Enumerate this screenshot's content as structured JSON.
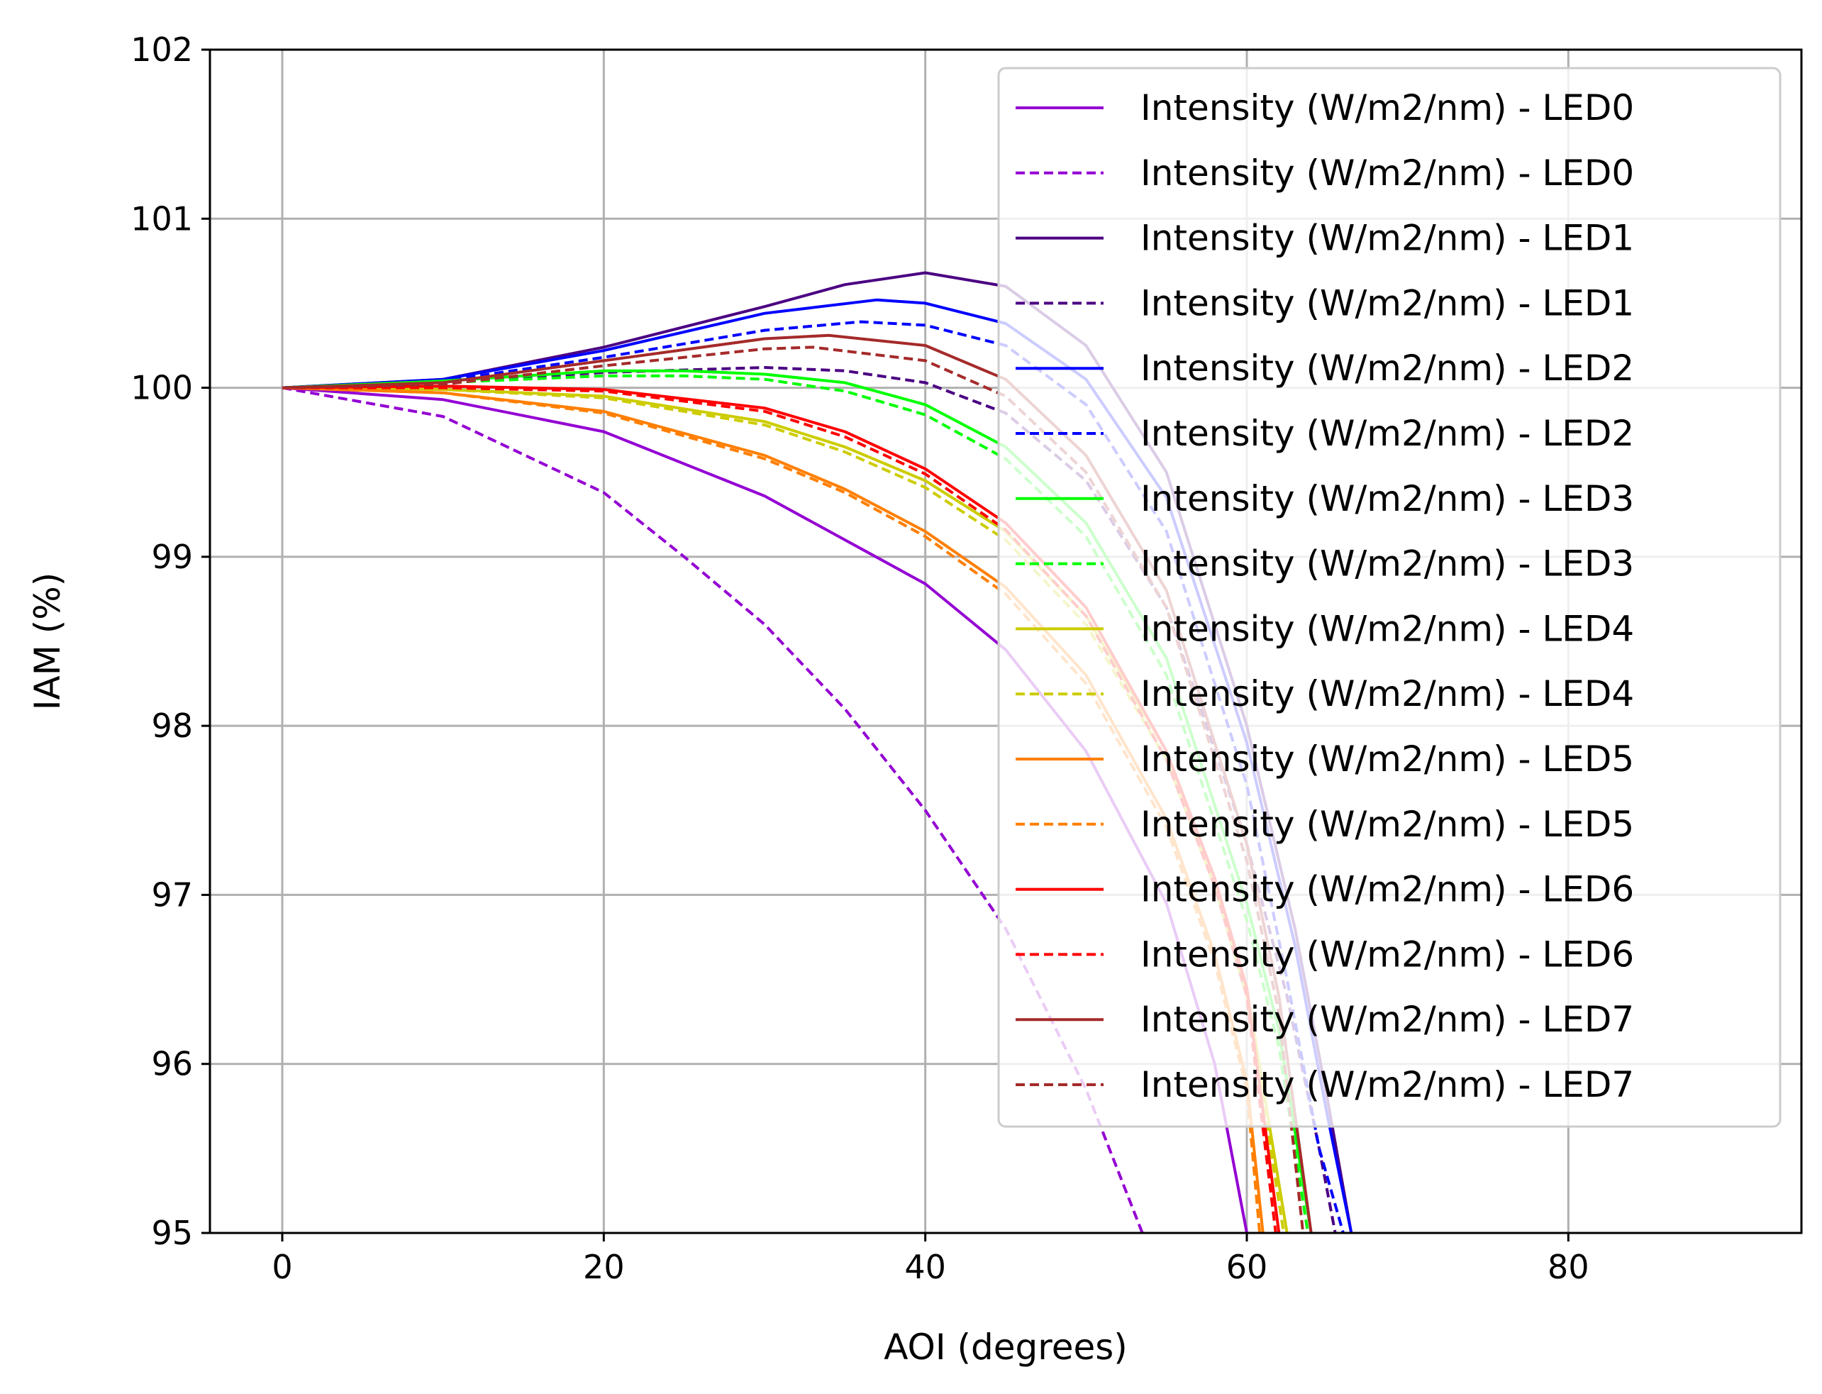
{
  "chart_data": {
    "type": "line",
    "title": "",
    "xlabel": "AOI (degrees)",
    "ylabel": "IAM (%)",
    "xlim": [
      -4.5,
      94.5
    ],
    "ylim": [
      95,
      102
    ],
    "xticks": [
      "0",
      "20",
      "40",
      "60",
      "80"
    ],
    "yticks": [
      "95",
      "96",
      "97",
      "98",
      "99",
      "100",
      "101",
      "102"
    ],
    "grid": true,
    "legend_position": "top-right",
    "series": [
      {
        "name": "Intensity (W/m2/nm) - LED0",
        "color": "#9400d3",
        "style": "solid",
        "x": [
          0,
          10,
          20,
          30,
          40,
          45,
          50,
          55,
          58,
          60
        ],
        "y": [
          100,
          99.93,
          99.74,
          99.36,
          98.84,
          98.45,
          97.85,
          96.95,
          96.0,
          95.0
        ]
      },
      {
        "name": "Intensity (W/m2/nm) - LED0",
        "color": "#9400d3",
        "style": "dashed",
        "x": [
          0,
          10,
          20,
          25,
          30,
          35,
          40,
          45,
          50,
          53.5
        ],
        "y": [
          100,
          99.83,
          99.38,
          99.0,
          98.6,
          98.1,
          97.5,
          96.8,
          95.85,
          95.0
        ]
      },
      {
        "name": "Intensity (W/m2/nm) - LED1",
        "color": "#4b0082",
        "style": "solid",
        "x": [
          0,
          10,
          20,
          30,
          35,
          40,
          45,
          50,
          55,
          60,
          63,
          65,
          66.5
        ],
        "y": [
          100,
          100.05,
          100.24,
          100.48,
          100.61,
          100.68,
          100.6,
          100.25,
          99.5,
          98.0,
          96.8,
          95.8,
          95.0
        ]
      },
      {
        "name": "Intensity (W/m2/nm) - LED1",
        "color": "#4b0082",
        "style": "dashed",
        "x": [
          0,
          10,
          20,
          30,
          35,
          40,
          45,
          50,
          55,
          60,
          62.5,
          64.5,
          65.5
        ],
        "y": [
          100,
          100.03,
          100.09,
          100.12,
          100.1,
          100.03,
          99.85,
          99.45,
          98.7,
          97.3,
          96.4,
          95.5,
          95.0
        ]
      },
      {
        "name": "Intensity (W/m2/nm) - LED2",
        "color": "#0000ff",
        "style": "solid",
        "x": [
          0,
          10,
          20,
          30,
          37,
          40,
          45,
          50,
          55,
          60,
          63,
          65,
          66.5
        ],
        "y": [
          100,
          100.05,
          100.22,
          100.44,
          100.52,
          100.5,
          100.38,
          100.05,
          99.35,
          97.9,
          96.7,
          95.7,
          95.0
        ]
      },
      {
        "name": "Intensity (W/m2/nm) - LED2",
        "color": "#0000ff",
        "style": "dashed",
        "x": [
          0,
          10,
          20,
          30,
          36,
          40,
          45,
          50,
          55,
          60,
          62.5,
          64.5,
          66
        ],
        "y": [
          100,
          100.04,
          100.18,
          100.34,
          100.39,
          100.37,
          100.25,
          99.9,
          99.15,
          97.65,
          96.5,
          95.5,
          95.0
        ]
      },
      {
        "name": "Intensity (W/m2/nm) - LED3",
        "color": "#00ff00",
        "style": "solid",
        "x": [
          0,
          10,
          20,
          25,
          30,
          35,
          40,
          45,
          50,
          55,
          60,
          62,
          64
        ],
        "y": [
          100,
          100.04,
          100.1,
          100.1,
          100.08,
          100.03,
          99.9,
          99.65,
          99.2,
          98.4,
          96.95,
          96.2,
          95.0
        ]
      },
      {
        "name": "Intensity (W/m2/nm) - LED3",
        "color": "#00ff00",
        "style": "dashed",
        "x": [
          0,
          10,
          20,
          25,
          30,
          35,
          40,
          45,
          50,
          55,
          60,
          62,
          63.8
        ],
        "y": [
          100,
          100.03,
          100.07,
          100.07,
          100.05,
          99.98,
          99.84,
          99.58,
          99.12,
          98.3,
          96.85,
          96.1,
          95.0
        ]
      },
      {
        "name": "Intensity (W/m2/nm) - LED4",
        "color": "#cccc00",
        "style": "solid",
        "x": [
          0,
          10,
          20,
          30,
          35,
          40,
          45,
          50,
          55,
          58,
          60,
          62.5
        ],
        "y": [
          100,
          99.99,
          99.95,
          99.8,
          99.65,
          99.45,
          99.15,
          98.65,
          97.85,
          97.1,
          96.45,
          95.0
        ]
      },
      {
        "name": "Intensity (W/m2/nm) - LED4",
        "color": "#cccc00",
        "style": "dashed",
        "x": [
          0,
          10,
          20,
          30,
          35,
          40,
          45,
          50,
          55,
          58,
          60,
          62.3
        ],
        "y": [
          100,
          99.99,
          99.94,
          99.78,
          99.62,
          99.41,
          99.1,
          98.6,
          97.8,
          97.05,
          96.4,
          95.0
        ]
      },
      {
        "name": "Intensity (W/m2/nm) - LED5",
        "color": "#ff7f00",
        "style": "solid",
        "x": [
          0,
          10,
          20,
          30,
          35,
          40,
          45,
          50,
          55,
          58,
          60,
          61
        ],
        "y": [
          100,
          99.97,
          99.86,
          99.6,
          99.4,
          99.15,
          98.82,
          98.3,
          97.45,
          96.65,
          95.9,
          95.0
        ]
      },
      {
        "name": "Intensity (W/m2/nm) - LED5",
        "color": "#ff7f00",
        "style": "dashed",
        "x": [
          0,
          10,
          20,
          30,
          35,
          40,
          45,
          50,
          55,
          58,
          60,
          60.8
        ],
        "y": [
          100,
          99.97,
          99.85,
          99.58,
          99.38,
          99.12,
          98.78,
          98.25,
          97.4,
          96.6,
          95.85,
          95.0
        ]
      },
      {
        "name": "Intensity (W/m2/nm) - LED6",
        "color": "#ff0000",
        "style": "solid",
        "x": [
          0,
          10,
          20,
          30,
          35,
          40,
          45,
          50,
          55,
          58,
          60,
          62
        ],
        "y": [
          100,
          100.01,
          99.99,
          99.88,
          99.74,
          99.52,
          99.2,
          98.7,
          97.85,
          97.1,
          96.45,
          95.0
        ]
      },
      {
        "name": "Intensity (W/m2/nm) - LED6",
        "color": "#ff0000",
        "style": "dashed",
        "x": [
          0,
          10,
          20,
          30,
          35,
          40,
          45,
          50,
          55,
          58,
          60,
          61.8
        ],
        "y": [
          100,
          100.0,
          99.98,
          99.86,
          99.71,
          99.49,
          99.16,
          98.65,
          97.8,
          97.05,
          96.4,
          95.0
        ]
      },
      {
        "name": "Intensity (W/m2/nm) - LED7",
        "color": "#a52a2a",
        "style": "solid",
        "x": [
          0,
          10,
          20,
          30,
          34,
          40,
          45,
          50,
          55,
          60,
          62,
          64
        ],
        "y": [
          100,
          100.03,
          100.16,
          100.29,
          100.31,
          100.25,
          100.05,
          99.6,
          98.8,
          97.3,
          96.4,
          95.0
        ]
      },
      {
        "name": "Intensity (W/m2/nm) - LED7",
        "color": "#a52a2a",
        "style": "dashed",
        "x": [
          0,
          10,
          20,
          30,
          33,
          40,
          45,
          50,
          55,
          60,
          62,
          63.5
        ],
        "y": [
          100,
          100.02,
          100.13,
          100.23,
          100.24,
          100.16,
          99.95,
          99.5,
          98.7,
          97.2,
          96.3,
          95.0
        ]
      }
    ]
  }
}
